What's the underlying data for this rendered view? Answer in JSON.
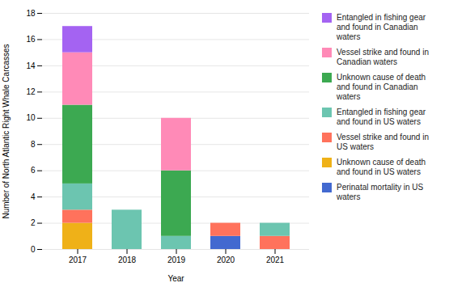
{
  "chart_data": {
    "type": "bar",
    "stacked": true,
    "categories": [
      "2017",
      "2018",
      "2019",
      "2020",
      "2021"
    ],
    "series": [
      {
        "name": "Perinatal mortality in US\nwaters",
        "values": [
          0,
          0,
          0,
          1,
          0
        ]
      },
      {
        "name": "Unknown cause of death\nand found in US waters",
        "values": [
          2,
          0,
          0,
          0,
          0
        ]
      },
      {
        "name": "Vessel strike and found in\nUS waters",
        "values": [
          1,
          0,
          0,
          1,
          1
        ]
      },
      {
        "name": "Entangled in fishing gear\nand found in US waters",
        "values": [
          2,
          3,
          1,
          0,
          1
        ]
      },
      {
        "name": "Unknown cause of death\nand found in Canadian\nwaters",
        "values": [
          6,
          0,
          5,
          0,
          0
        ]
      },
      {
        "name": "Vessel strike and found in\nCanadian waters",
        "values": [
          4,
          0,
          4,
          0,
          0
        ]
      },
      {
        "name": "Entangled in fishing gear\nand found in Canadian\nwaters",
        "values": [
          2,
          0,
          0,
          0,
          0
        ]
      }
    ],
    "xlabel": "Year",
    "ylabel": "Number of North Atlantic Right Whale Carcasses",
    "ylim": [
      0,
      18
    ],
    "yticks": [
      0,
      2,
      4,
      6,
      8,
      10,
      12,
      14,
      16,
      18
    ],
    "grid": true,
    "legend": "right"
  }
}
